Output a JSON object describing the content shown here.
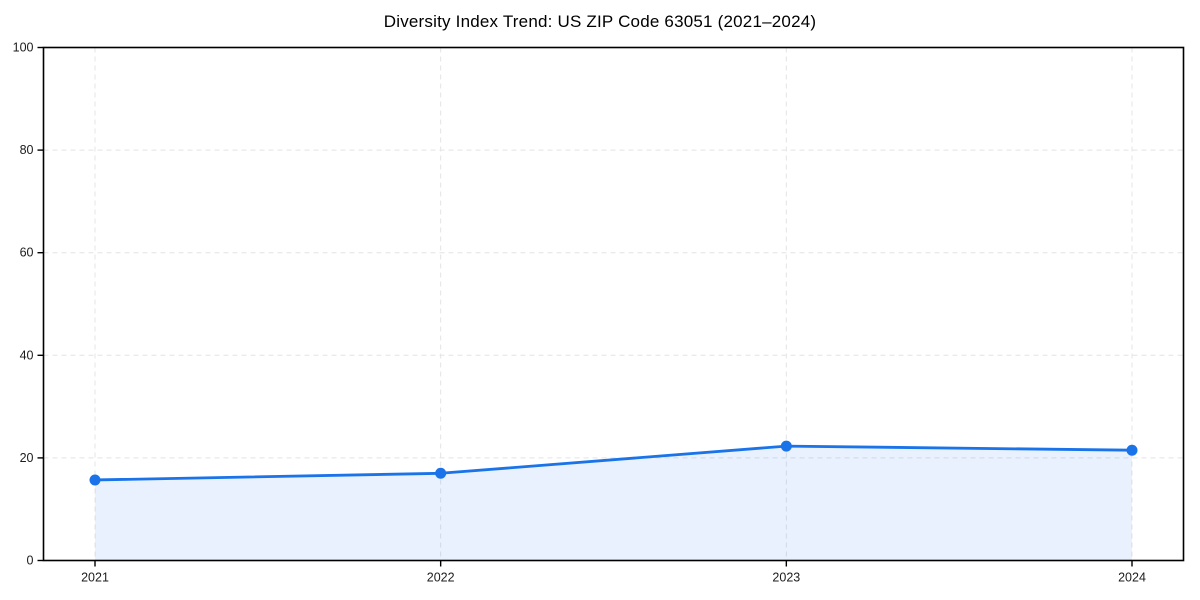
{
  "figure": {
    "background": "#ffffff"
  },
  "chart_data": {
    "type": "area",
    "title": "Diversity Index Trend: US ZIP Code 63051 (2021–2024)",
    "categories": [
      "2021",
      "2022",
      "2023",
      "2024"
    ],
    "series": [
      {
        "name": "Diversity Index",
        "values": [
          15.7,
          17.0,
          22.3,
          21.5
        ]
      }
    ],
    "xlabel": "",
    "ylabel": "",
    "ylim": [
      0,
      100
    ],
    "yticks": [
      0,
      20,
      40,
      60,
      80,
      100
    ],
    "grid": true,
    "grid_line_style": "dashed",
    "legend_position": "none",
    "marker": "circle",
    "line_color": "#1a73e8",
    "marker_color": "#1a73e8",
    "fill_color": "#1a73e8",
    "fill_opacity": 0.1,
    "fill_color_effective": "#e9f1fd",
    "grid_color": "#e4e4e4",
    "axis_color": "#000000",
    "tick_label_color": "#1c1c1c",
    "title_color": "#000000"
  }
}
